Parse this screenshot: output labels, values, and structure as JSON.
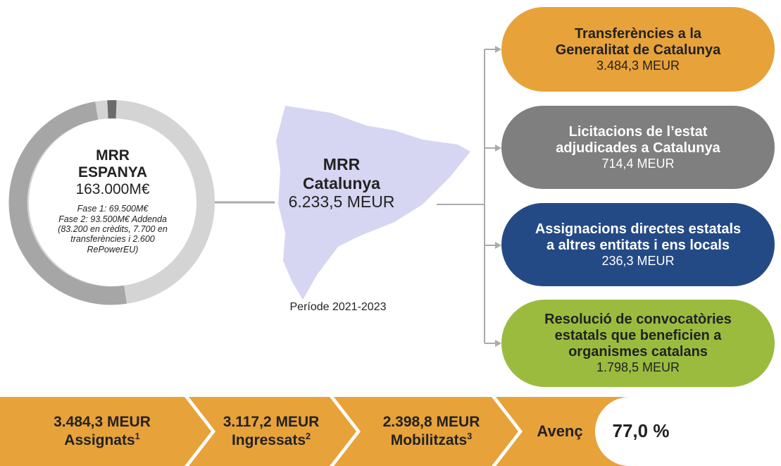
{
  "donut": {
    "title": [
      "MRR",
      "ESPANYA"
    ],
    "amount": "163.000M€",
    "notes": [
      "Fase 1: 69.500M€",
      "Fase 2: 93.500M€ Addenda",
      "(83.200 en crèdits, 7.700 en",
      "transferències i 2.600",
      "RePowerEU)"
    ]
  },
  "center": {
    "title": [
      "MRR",
      "Catalunya"
    ],
    "amount": "6.233,5 MEUR",
    "period": "Període 2021-2023"
  },
  "boxes": [
    {
      "lines": [
        "Transferències a la",
        "Generalitat de Catalunya"
      ],
      "amount": "3.484,3 MEUR"
    },
    {
      "lines": [
        "Licitacions de l’estat",
        "adjudicades a Catalunya"
      ],
      "amount": "714,4 MEUR"
    },
    {
      "lines": [
        "Assignacions directes estatals",
        "a altres entitats i ens locals"
      ],
      "amount": "236,3 MEUR"
    },
    {
      "lines": [
        "Resolució de convocatòries",
        "estatals que beneficien a",
        "organismes catalans"
      ],
      "amount": "1.798,5 MEUR"
    }
  ],
  "steps": [
    {
      "amount": "3.484,3 MEUR",
      "label": "Assignats",
      "note": "1"
    },
    {
      "amount": "3.117,2 MEUR",
      "label": "Ingressats",
      "note": "2"
    },
    {
      "amount": "2.398,8 MEUR",
      "label": "Mobilitzats",
      "note": "3"
    }
  ],
  "progress": {
    "label": "Avenç",
    "value": "77,0 %"
  }
}
